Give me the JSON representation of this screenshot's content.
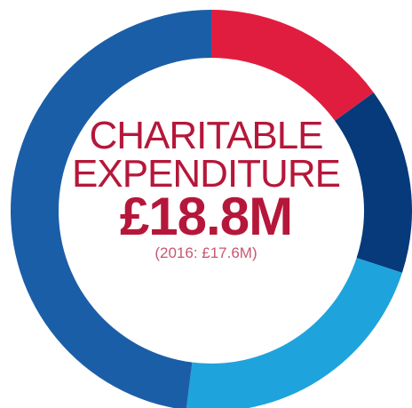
{
  "chart_data": {
    "type": "pie",
    "title_lines": [
      "CHARITABLE",
      "EXPENDITURE"
    ],
    "total_label": "£18.8M",
    "comparison": "(2016: £17.6M)",
    "series": [
      {
        "value": 0.15,
        "color": "#e11d3f"
      },
      {
        "value": 0.15,
        "color": "#073a7a"
      },
      {
        "value": 0.22,
        "color": "#1fa3dd"
      },
      {
        "value": 0.48,
        "color": "#1b5ea8"
      }
    ]
  },
  "colors": {
    "title": "#b5173a",
    "comparison": "#c8566f",
    "background": "#ffffff"
  }
}
